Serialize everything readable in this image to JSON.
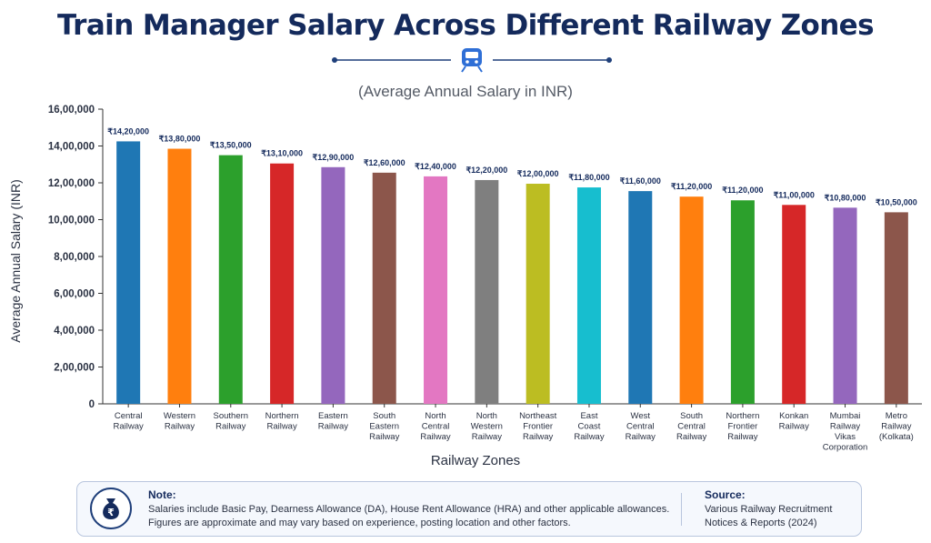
{
  "header": {
    "title": "Train Manager Salary Across Different Railway Zones",
    "subtitle": "(Average Annual Salary in INR)",
    "divider_icon": "train-icon"
  },
  "chart_data": {
    "type": "bar",
    "xlabel": "Railway Zones",
    "ylabel": "Average Annual Salary (INR)",
    "ylim": [
      0,
      1600000
    ],
    "grid": false,
    "legend": "none",
    "y_ticks": [
      "0",
      "2,00,000",
      "4,00,000",
      "6,00,000",
      "8,00,000",
      "10,00,000",
      "12,00,000",
      "14,00,000",
      "16,00,000"
    ],
    "categories": [
      [
        "Central",
        "Railway"
      ],
      [
        "Western",
        "Railway"
      ],
      [
        "Southern",
        "Railway"
      ],
      [
        "Northern",
        "Railway"
      ],
      [
        "Eastern",
        "Railway"
      ],
      [
        "South",
        "Eastern",
        "Railway"
      ],
      [
        "North",
        "Central",
        "Railway"
      ],
      [
        "North",
        "Western",
        "Railway"
      ],
      [
        "Northeast",
        "Frontier",
        "Railway"
      ],
      [
        "East",
        "Coast",
        "Railway"
      ],
      [
        "West",
        "Central",
        "Railway"
      ],
      [
        "South",
        "Central",
        "Railway"
      ],
      [
        "Northern",
        "Frontier",
        "Railway"
      ],
      [
        "Konkan",
        "Railway"
      ],
      [
        "Mumbai",
        "Railway",
        "Vikas",
        "Corporation"
      ],
      [
        "Metro",
        "Railway",
        "(Kolkata)"
      ]
    ],
    "values": [
      1420000,
      1380000,
      1350000,
      1310000,
      1290000,
      1260000,
      1240000,
      1220000,
      1200000,
      1180000,
      1160000,
      1120000,
      1120000,
      1100000,
      1080000,
      1050000
    ],
    "bar_heights_plotted": [
      1425000,
      1385000,
      1350000,
      1305000,
      1285000,
      1255000,
      1235000,
      1215000,
      1195000,
      1175000,
      1155000,
      1125000,
      1105000,
      1080000,
      1065000,
      1040000
    ],
    "data_labels": [
      "₹14,20,000",
      "₹13,80,000",
      "₹13,50,000",
      "₹13,10,000",
      "₹12,90,000",
      "₹12,60,000",
      "₹12,40,000",
      "₹12,20,000",
      "₹12,00,000",
      "₹11,80,000",
      "₹11,60,000",
      "₹11,20,000",
      "₹11,20,000",
      "₹11,00,000",
      "₹10,80,000",
      "₹10,50,000"
    ],
    "colors": [
      "#1f77b4",
      "#ff7f0e",
      "#2ca02c",
      "#d62728",
      "#9467bd",
      "#8c564b",
      "#e377c2",
      "#7f7f7f",
      "#bcbd22",
      "#17becf",
      "#1f77b4",
      "#ff7f0e",
      "#2ca02c",
      "#d62728",
      "#9467bd",
      "#8c564b"
    ]
  },
  "note": {
    "title": "Note:",
    "line1": "Salaries include Basic Pay, Dearness Allowance (DA), House Rent Allowance (HRA) and other applicable allowances.",
    "line2": "Figures are approximate and may vary based on experience, posting location and other factors.",
    "icon": "money-bag-icon",
    "icon_symbol": "₹"
  },
  "source": {
    "title": "Source:",
    "line1": "Various Railway Recruitment",
    "line2": "Notices & Reports (2024)"
  }
}
